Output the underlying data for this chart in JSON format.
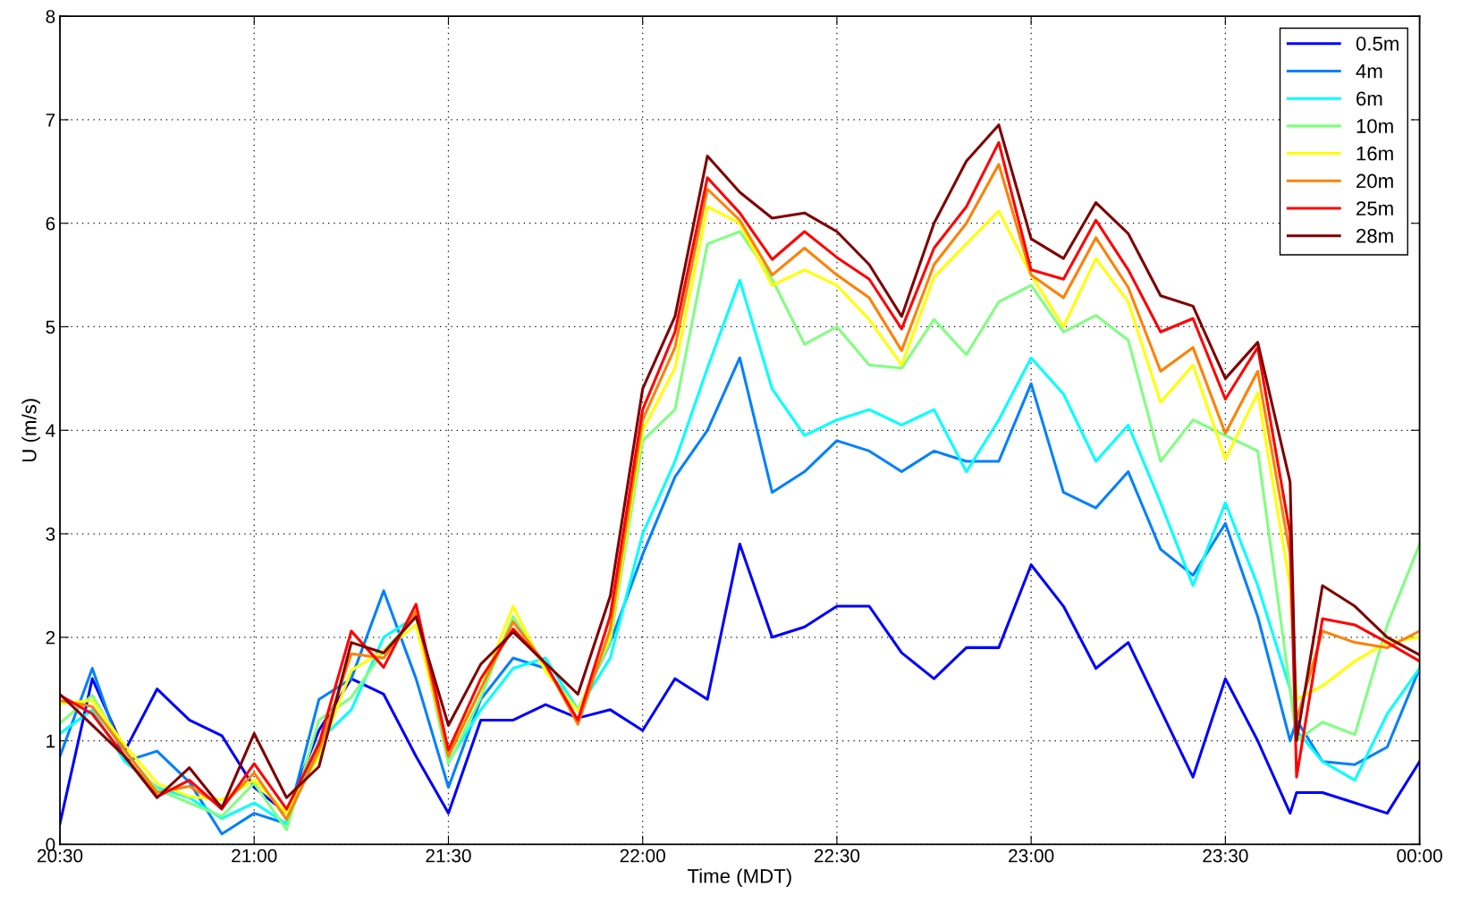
{
  "chart_data": {
    "type": "line",
    "xlabel": "Time (MDT)",
    "ylabel": "U (m/s)",
    "x": [
      20.5,
      20.5833,
      20.6667,
      20.75,
      20.8333,
      20.9167,
      21.0,
      21.0833,
      21.1667,
      21.25,
      21.3333,
      21.4167,
      21.5,
      21.5833,
      21.6667,
      21.75,
      21.8333,
      21.9167,
      22.0,
      22.0833,
      22.1667,
      22.25,
      22.3333,
      22.4167,
      22.5,
      22.5833,
      22.6667,
      22.75,
      22.8333,
      22.9167,
      23.0,
      23.0833,
      23.1667,
      23.25,
      23.3333,
      23.4167,
      23.5,
      23.5833,
      23.6667,
      23.6833,
      23.75,
      23.8333,
      23.9167,
      24.0
    ],
    "xlim": [
      20.5,
      24.0
    ],
    "xticks": [
      {
        "value": 20.5,
        "label": "20:30"
      },
      {
        "value": 21.0,
        "label": "21:00"
      },
      {
        "value": 21.5,
        "label": "21:30"
      },
      {
        "value": 22.0,
        "label": "22:00"
      },
      {
        "value": 22.5,
        "label": "22:30"
      },
      {
        "value": 23.0,
        "label": "23:00"
      },
      {
        "value": 23.5,
        "label": "23:30"
      },
      {
        "value": 24.0,
        "label": "00:00"
      }
    ],
    "ylim": [
      0,
      8
    ],
    "yticks": [
      0,
      1,
      2,
      3,
      4,
      5,
      6,
      7,
      8
    ],
    "grid": true,
    "legend": "top right",
    "series": [
      {
        "name": "0.5m",
        "color": "#0000ff",
        "values": [
          0.2,
          1.6,
          0.9,
          1.5,
          1.2,
          1.05,
          0.55,
          0.3,
          1.1,
          1.6,
          1.45,
          0.85,
          0.3,
          1.2,
          1.2,
          1.35,
          1.22,
          1.3,
          1.1,
          1.6,
          1.4,
          2.9,
          2.0,
          2.1,
          2.3,
          2.3,
          1.85,
          1.6,
          1.9,
          1.9,
          2.7,
          2.3,
          1.7,
          1.95,
          1.3,
          0.65,
          1.6,
          1.0,
          0.3,
          0.5,
          0.5,
          0.4,
          0.3,
          0.8
        ]
      },
      {
        "name": "4m",
        "color": "#0080ff",
        "values": [
          0.85,
          1.7,
          0.8,
          0.9,
          0.6,
          0.1,
          0.3,
          0.2,
          1.4,
          1.6,
          2.45,
          1.6,
          0.55,
          1.4,
          1.8,
          1.7,
          1.3,
          1.95,
          2.8,
          3.55,
          4.0,
          4.7,
          3.4,
          3.6,
          3.9,
          3.8,
          3.6,
          3.8,
          3.7,
          3.7,
          4.45,
          3.4,
          3.25,
          3.6,
          2.85,
          2.6,
          3.1,
          2.2,
          1.0,
          1.2,
          0.8,
          0.77,
          0.94,
          1.7
        ]
      },
      {
        "name": "6m",
        "color": "#00ffff",
        "values": [
          1.07,
          1.3,
          0.8,
          0.55,
          0.45,
          0.25,
          0.4,
          0.2,
          1.0,
          1.3,
          2.0,
          2.2,
          0.8,
          1.3,
          1.7,
          1.8,
          1.3,
          1.8,
          3.0,
          3.7,
          4.6,
          5.45,
          4.4,
          3.95,
          4.1,
          4.2,
          4.05,
          4.2,
          3.6,
          4.1,
          4.7,
          4.35,
          3.7,
          4.05,
          3.3,
          2.5,
          3.3,
          2.5,
          1.5,
          1.1,
          0.8,
          0.62,
          1.26,
          1.7
        ]
      },
      {
        "name": "10m",
        "color": "#80ff80",
        "values": [
          1.17,
          1.44,
          0.9,
          0.53,
          0.4,
          0.27,
          0.59,
          0.14,
          1.2,
          1.42,
          1.87,
          2.2,
          0.78,
          1.42,
          2.2,
          1.7,
          1.29,
          1.96,
          3.9,
          4.2,
          5.8,
          5.92,
          5.46,
          4.83,
          5.0,
          4.63,
          4.6,
          5.07,
          4.73,
          5.24,
          5.4,
          4.95,
          5.11,
          4.87,
          3.7,
          4.1,
          3.95,
          3.8,
          1.5,
          1.0,
          1.18,
          1.06,
          2.12,
          2.9
        ]
      },
      {
        "name": "16m",
        "color": "#ffff00",
        "values": [
          1.36,
          1.39,
          0.96,
          0.59,
          0.46,
          0.43,
          0.62,
          0.3,
          0.85,
          1.68,
          1.87,
          2.12,
          0.88,
          1.5,
          2.3,
          1.67,
          1.29,
          2.02,
          4.0,
          4.6,
          6.16,
          6.0,
          5.4,
          5.55,
          5.4,
          5.07,
          4.63,
          5.48,
          5.8,
          6.12,
          5.5,
          5.0,
          5.66,
          5.24,
          4.27,
          4.63,
          3.72,
          4.36,
          2.5,
          1.4,
          1.53,
          1.77,
          1.95,
          2.0
        ]
      },
      {
        "name": "20m",
        "color": "#ff8000",
        "values": [
          1.39,
          1.33,
          0.91,
          0.5,
          0.56,
          0.37,
          0.69,
          0.24,
          0.91,
          1.84,
          1.8,
          2.25,
          0.85,
          1.5,
          2.15,
          1.74,
          1.16,
          2.08,
          4.1,
          4.8,
          6.33,
          6.03,
          5.5,
          5.76,
          5.5,
          5.28,
          4.77,
          5.6,
          6.0,
          6.57,
          5.5,
          5.28,
          5.86,
          5.38,
          4.57,
          4.8,
          3.97,
          4.57,
          2.8,
          1.2,
          2.06,
          1.95,
          1.9,
          2.06
        ]
      },
      {
        "name": "25m",
        "color": "#ff0000",
        "values": [
          1.44,
          1.26,
          0.85,
          0.46,
          0.62,
          0.34,
          0.78,
          0.34,
          0.97,
          2.06,
          1.71,
          2.32,
          0.91,
          1.6,
          2.08,
          1.74,
          1.2,
          2.21,
          4.2,
          4.95,
          6.44,
          6.1,
          5.65,
          5.92,
          5.67,
          5.46,
          4.98,
          5.76,
          6.16,
          6.78,
          5.55,
          5.46,
          6.03,
          5.55,
          4.95,
          5.08,
          4.3,
          4.8,
          3.0,
          0.65,
          2.18,
          2.12,
          1.95,
          1.77
        ]
      },
      {
        "name": "28m",
        "color": "#800000",
        "values": [
          1.45,
          1.15,
          0.85,
          0.45,
          0.74,
          0.35,
          1.07,
          0.45,
          0.75,
          1.95,
          1.85,
          2.2,
          1.15,
          1.74,
          2.05,
          1.75,
          1.45,
          2.4,
          4.4,
          5.1,
          6.65,
          6.3,
          6.05,
          6.1,
          5.92,
          5.6,
          5.1,
          6.0,
          6.6,
          6.95,
          5.85,
          5.66,
          6.2,
          5.9,
          5.3,
          5.2,
          4.5,
          4.85,
          3.5,
          1.0,
          2.5,
          2.3,
          2.0,
          1.83
        ]
      }
    ]
  }
}
